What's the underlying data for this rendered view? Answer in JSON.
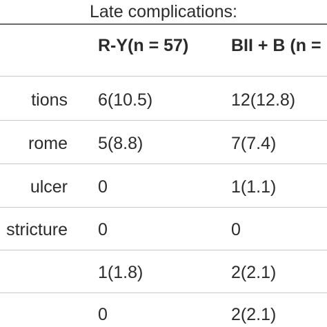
{
  "caption": "Late complications:",
  "table": {
    "headers": [
      "",
      "R-Y(n = 57)",
      "BII + B (n ="
    ],
    "rows": [
      {
        "label": "tions",
        "ry": "6(10.5)",
        "bii": "12(12.8)"
      },
      {
        "label": "rome",
        "ry": "5(8.8)",
        "bii": "7(7.4)"
      },
      {
        "label": "ulcer",
        "ry": "0",
        "bii": "1(1.1)"
      },
      {
        "label": "stricture",
        "ry": "0",
        "bii": "0"
      },
      {
        "label": "",
        "ry": "1(1.8)",
        "bii": "2(2.1)"
      },
      {
        "label": "",
        "ry": "0",
        "bii": "2(2.1)"
      }
    ]
  }
}
